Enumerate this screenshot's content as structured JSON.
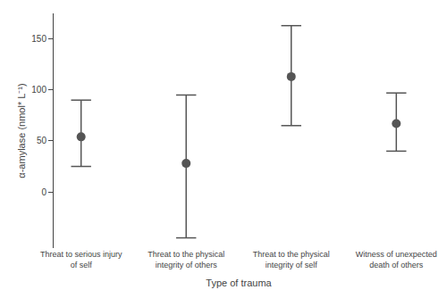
{
  "chart_data": {
    "type": "scatter",
    "categories": [
      "Threat to serious injury\nof self",
      "Threat to the physical\nintegrity of others",
      "Threat to the physical\nintegrity of self",
      "Witness of unexpected\ndeath of others"
    ],
    "values": [
      54,
      28,
      113,
      67
    ],
    "ci_lower": [
      25,
      -45,
      65,
      40
    ],
    "ci_upper": [
      90,
      95,
      163,
      97
    ],
    "xlabel": "Type of trauma",
    "ylabel": "α-amylase (nmol* L⁻¹)",
    "ylim": [
      -55,
      175
    ],
    "yticks": [
      0,
      50,
      100,
      150
    ],
    "color": "#555555",
    "grid": false
  }
}
